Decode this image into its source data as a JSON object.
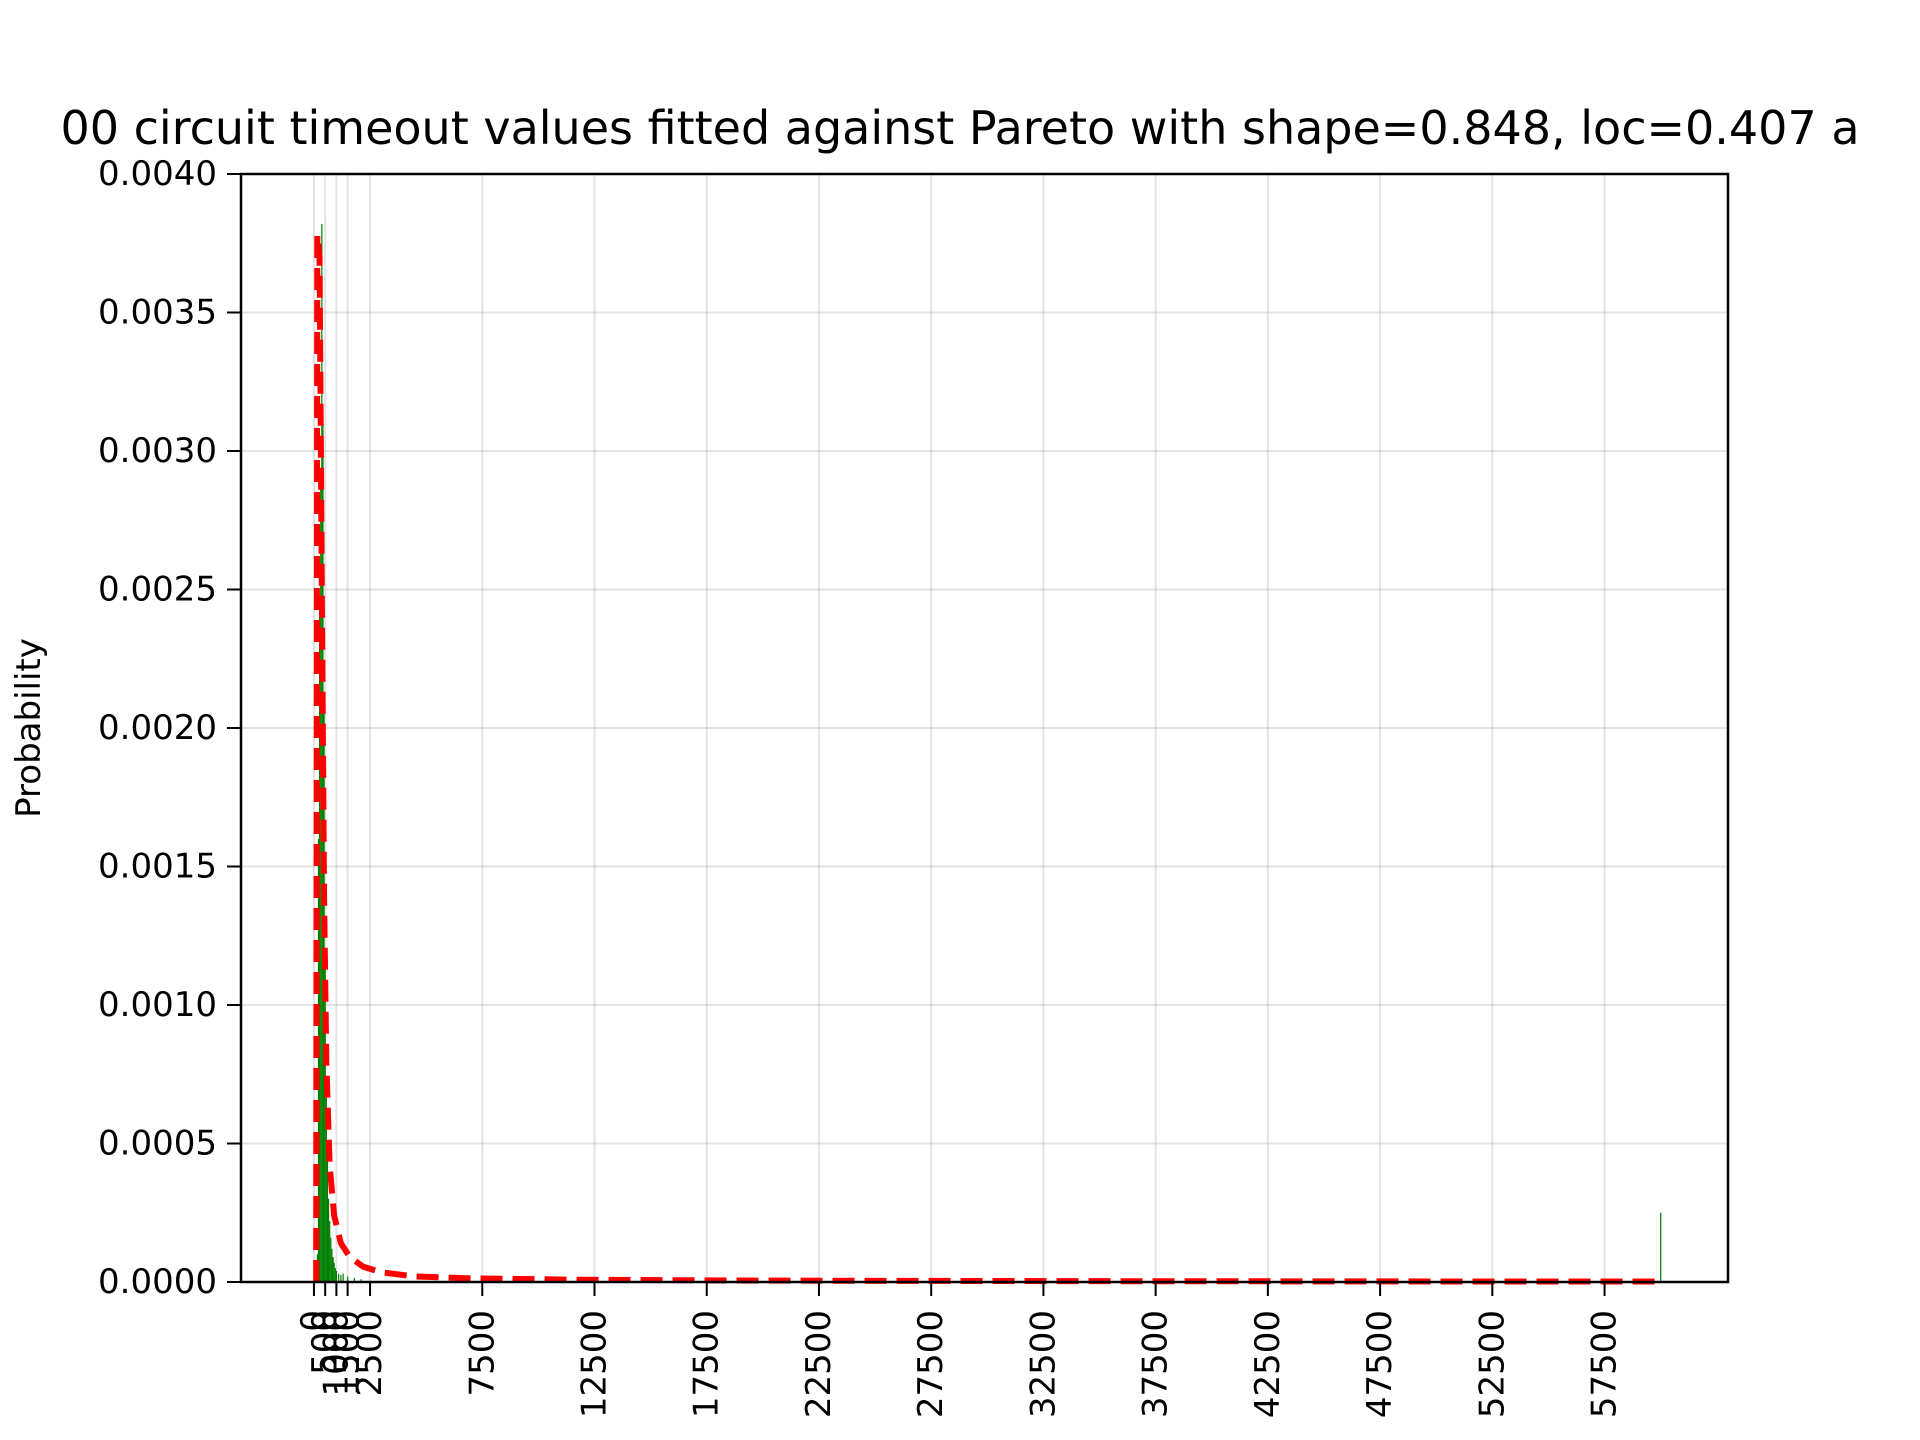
{
  "chart_data": {
    "type": "bar",
    "title": "00 circuit timeout values fitted against Pareto with shape=0.848, loc=0.407 a",
    "xlabel": "",
    "ylabel": "Probability",
    "xlim": [
      -3250,
      63000
    ],
    "ylim": [
      0,
      0.004
    ],
    "grid": true,
    "x_ticks": [
      {
        "value": 0,
        "label": "0"
      },
      {
        "value": 500,
        "label": "500"
      },
      {
        "value": 1000,
        "label": "1000"
      },
      {
        "value": 1500,
        "label": "1500"
      },
      {
        "value": 2500,
        "label": "2500"
      },
      {
        "value": 7500,
        "label": "7500"
      },
      {
        "value": 12500,
        "label": "12500"
      },
      {
        "value": 17500,
        "label": "17500"
      },
      {
        "value": 22500,
        "label": "22500"
      },
      {
        "value": 27500,
        "label": "27500"
      },
      {
        "value": 32500,
        "label": "32500"
      },
      {
        "value": 37500,
        "label": "37500"
      },
      {
        "value": 42500,
        "label": "42500"
      },
      {
        "value": 47500,
        "label": "47500"
      },
      {
        "value": 52500,
        "label": "52500"
      },
      {
        "value": 57500,
        "label": "57500"
      }
    ],
    "y_ticks": [
      {
        "value": 0.0,
        "label": "0.0000"
      },
      {
        "value": 0.0005,
        "label": "0.0005"
      },
      {
        "value": 0.001,
        "label": "0.0010"
      },
      {
        "value": 0.0015,
        "label": "0.0015"
      },
      {
        "value": 0.002,
        "label": "0.0020"
      },
      {
        "value": 0.0025,
        "label": "0.0025"
      },
      {
        "value": 0.003,
        "label": "0.0030"
      },
      {
        "value": 0.0035,
        "label": "0.0035"
      },
      {
        "value": 0.004,
        "label": "0.0040"
      }
    ],
    "series": [
      {
        "kind": "histogram",
        "color": "#008000",
        "bin_width": 50,
        "bins": [
          {
            "x": 150,
            "y": 0.0001
          },
          {
            "x": 200,
            "y": 0.0016
          },
          {
            "x": 250,
            "y": 0.0024
          },
          {
            "x": 300,
            "y": 0.0029
          },
          {
            "x": 350,
            "y": 0.00382
          },
          {
            "x": 400,
            "y": 0.0031
          },
          {
            "x": 450,
            "y": 0.0021
          },
          {
            "x": 500,
            "y": 0.0012
          },
          {
            "x": 550,
            "y": 0.0007
          },
          {
            "x": 600,
            "y": 0.00045
          },
          {
            "x": 650,
            "y": 0.0003
          },
          {
            "x": 700,
            "y": 0.00022
          },
          {
            "x": 750,
            "y": 0.00016
          },
          {
            "x": 800,
            "y": 0.00012
          },
          {
            "x": 850,
            "y": 9e-05
          },
          {
            "x": 900,
            "y": 7e-05
          },
          {
            "x": 950,
            "y": 5e-05
          },
          {
            "x": 1000,
            "y": 4e-05
          },
          {
            "x": 1100,
            "y": 3e-05
          },
          {
            "x": 1200,
            "y": 2.5e-05
          },
          {
            "x": 1300,
            "y": 3e-05
          },
          {
            "x": 1500,
            "y": 2e-05
          },
          {
            "x": 1800,
            "y": 1.5e-05
          },
          {
            "x": 2100,
            "y": 1e-05
          },
          {
            "x": 60000,
            "y": 0.00025
          }
        ]
      },
      {
        "kind": "line",
        "style": "dashed",
        "color": "#ff0000",
        "points": [
          {
            "x": 100,
            "y": 0
          },
          {
            "x": 150,
            "y": 0.00378
          },
          {
            "x": 250,
            "y": 0.0037
          },
          {
            "x": 350,
            "y": 0.0025
          },
          {
            "x": 450,
            "y": 0.0014
          },
          {
            "x": 550,
            "y": 0.0008
          },
          {
            "x": 700,
            "y": 0.00042
          },
          {
            "x": 900,
            "y": 0.00024
          },
          {
            "x": 1200,
            "y": 0.00014
          },
          {
            "x": 1600,
            "y": 9e-05
          },
          {
            "x": 2200,
            "y": 5.5e-05
          },
          {
            "x": 3000,
            "y": 3.5e-05
          },
          {
            "x": 4500,
            "y": 2e-05
          },
          {
            "x": 7000,
            "y": 1.3e-05
          },
          {
            "x": 12000,
            "y": 8e-06
          },
          {
            "x": 20000,
            "y": 5e-06
          },
          {
            "x": 35000,
            "y": 3e-06
          },
          {
            "x": 50000,
            "y": 2e-06
          },
          {
            "x": 60000,
            "y": 2e-06
          }
        ]
      }
    ]
  }
}
